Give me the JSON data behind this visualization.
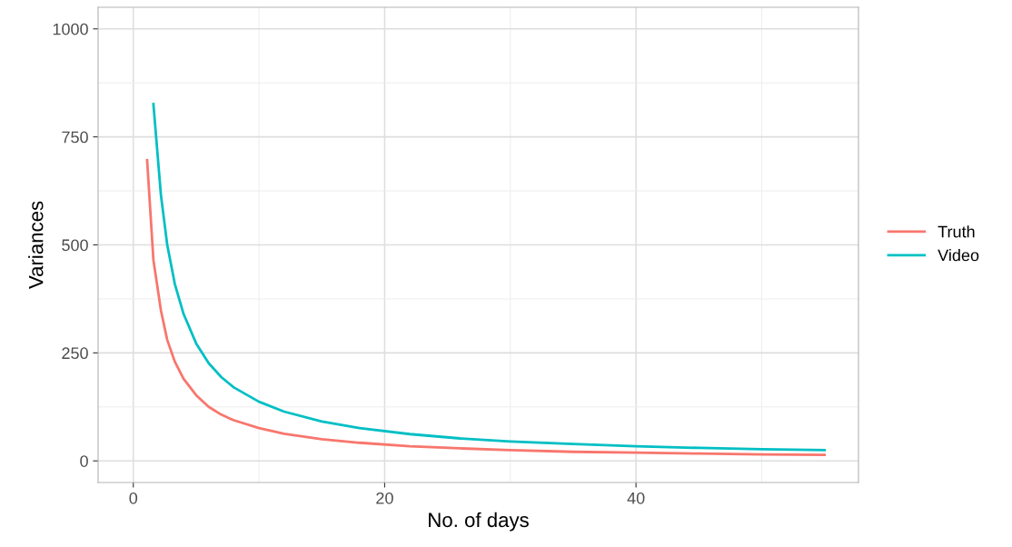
{
  "chart_data": {
    "type": "line",
    "xlabel": "No. of days",
    "ylabel": "Variances",
    "series": [
      {
        "name": "Truth",
        "color": "#f8766d",
        "x": [
          1.1,
          1.6,
          2.2,
          2.7,
          3.3,
          4,
          5,
          6,
          7,
          8,
          10,
          12,
          15,
          18,
          22,
          26,
          30,
          35,
          40,
          45,
          50,
          55
        ],
        "values": [
          696,
          465,
          348,
          280,
          230,
          190,
          152,
          125,
          107,
          94,
          76,
          63,
          50,
          42,
          34,
          29,
          25,
          21,
          19,
          17,
          15,
          14
        ]
      },
      {
        "name": "Video",
        "color": "#00bfc4",
        "x": [
          1.6,
          2.2,
          2.7,
          3.3,
          4,
          5,
          6,
          7,
          8,
          10,
          12,
          15,
          18,
          22,
          26,
          30,
          35,
          40,
          45,
          50,
          55
        ],
        "values": [
          826,
          615,
          500,
          410,
          340,
          272,
          226,
          194,
          170,
          137,
          114,
          91,
          76,
          62,
          52,
          45,
          39,
          34,
          30,
          27,
          25
        ]
      }
    ],
    "xlim": [
      -2.8,
      57.7
    ],
    "ylim": [
      -50,
      1050
    ],
    "xticks": [
      0,
      20,
      40
    ],
    "yticks": [
      0,
      250,
      500,
      750,
      1000
    ],
    "grid": true,
    "legend": "right",
    "marker": "none",
    "line_style": "solid"
  }
}
